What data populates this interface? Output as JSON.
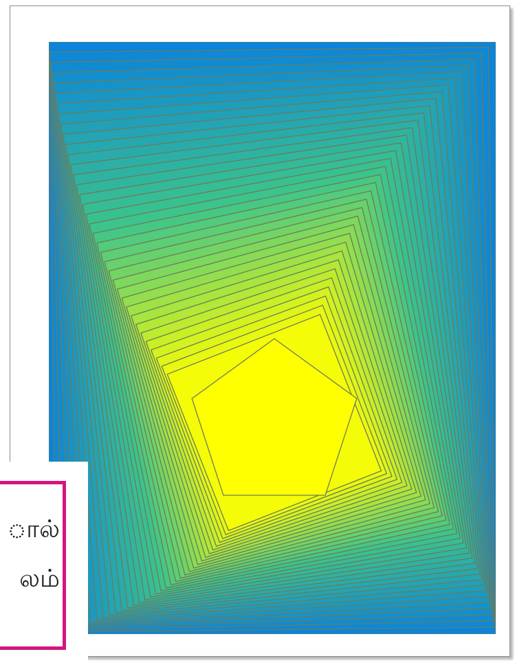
{
  "artwork": {
    "colors": {
      "outer": "#0b84db",
      "inner": "#ffff00",
      "edge": "#6b7c5a"
    },
    "pentagon_fill": "#ffff00"
  },
  "callout": {
    "border_color": "#d4157e",
    "lines": [
      "ால்",
      "லம்"
    ]
  }
}
